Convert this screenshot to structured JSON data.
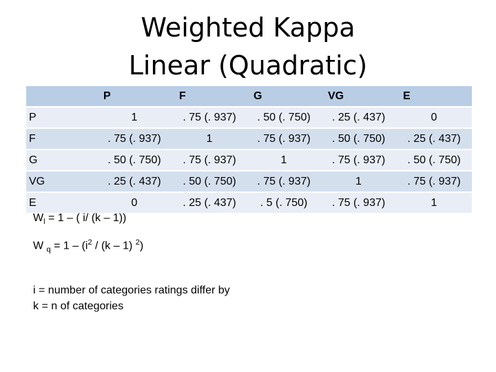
{
  "title": [
    "Weighted Kappa",
    "Linear (Quadratic)"
  ],
  "table": {
    "header": [
      "P",
      "F",
      "G",
      "VG",
      "E"
    ],
    "rows": [
      [
        "P",
        "1",
        ". 75 (. 937)",
        ". 50 (. 750)",
        ". 25 (. 437)",
        "0"
      ],
      [
        "F",
        ". 75 (. 937)",
        "1",
        ". 75 (. 937)",
        ". 50 (. 750)",
        ". 25 (. 437)"
      ],
      [
        "G",
        ". 50 (. 750)",
        ". 75 (. 937)",
        "1",
        ". 75 (. 937)",
        ". 50 (. 750)"
      ],
      [
        "VG",
        ". 25 (. 437)",
        ". 50 (. 750)",
        ". 75 (. 937)",
        "1",
        ". 75 (. 937)"
      ],
      [
        "E",
        "0",
        ". 25 (. 437)",
        ". 5 (. 750)",
        ". 75 (. 937)",
        "1"
      ]
    ]
  },
  "formulas": {
    "linear": [
      "W",
      "l",
      " = 1 – ( i/ (k – 1))"
    ],
    "quadratic": [
      "W ",
      "q",
      " = 1 – (i",
      "2",
      " / (k – 1) ",
      "2",
      ")"
    ]
  },
  "definitions": [
    "i = number of categories ratings differ by",
    "k = n of categories"
  ]
}
